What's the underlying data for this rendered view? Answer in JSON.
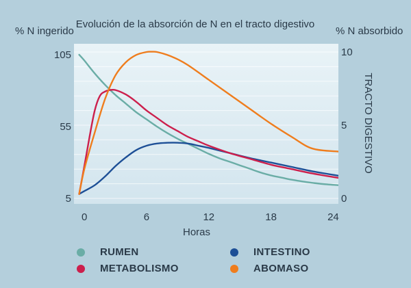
{
  "chart_data": {
    "type": "line",
    "title": "Evolución de la absorción de N en el tracto digestivo",
    "xlabel": "Horas",
    "ylabel_left": "% N ingerido",
    "ylabel_right": "% N absorbido",
    "ylabel_right_secondary": "TRACTO DIGESTIVO",
    "xlim": [
      -1,
      24.5
    ],
    "x_ticks": [
      0,
      6,
      12,
      18,
      24
    ],
    "ylim_left": [
      5,
      105
    ],
    "y_ticks_left": [
      5,
      55,
      105
    ],
    "ylim_right": [
      0,
      10
    ],
    "y_ticks_right": [
      0,
      5,
      10
    ],
    "grid": true,
    "legend_position": "bottom",
    "series": [
      {
        "name": "RUMEN",
        "axis": "left",
        "color": "#6aada6",
        "x": [
          -0.5,
          0,
          1,
          2,
          3,
          4,
          5,
          6,
          7,
          8,
          9,
          10,
          11,
          12,
          13,
          14,
          15,
          16,
          17,
          18,
          19,
          20,
          21,
          22,
          23,
          24.5
        ],
        "y": [
          105,
          101,
          92,
          84,
          77,
          71,
          65,
          60,
          55,
          50.5,
          46.5,
          43,
          39.5,
          36,
          33,
          30.5,
          28,
          25.5,
          23,
          21,
          19.5,
          18,
          16.8,
          15.8,
          15,
          14.2
        ]
      },
      {
        "name": "METABOLISMO",
        "axis": "right",
        "color": "#cc1f4c",
        "x": [
          -0.5,
          0,
          0.5,
          1,
          1.5,
          2,
          2.5,
          3,
          4,
          5,
          6,
          7,
          8,
          9,
          10,
          11,
          12,
          14,
          16,
          18,
          20,
          22,
          24.5
        ],
        "y": [
          0.3,
          2.2,
          4.2,
          6.0,
          7.0,
          7.3,
          7.4,
          7.4,
          7.1,
          6.6,
          6.0,
          5.5,
          5.0,
          4.6,
          4.2,
          3.9,
          3.6,
          3.1,
          2.7,
          2.3,
          2.0,
          1.7,
          1.4
        ]
      },
      {
        "name": "INTESTINO",
        "axis": "right",
        "color": "#1d4f96",
        "x": [
          -0.5,
          0,
          1,
          2,
          3,
          4,
          5,
          6,
          7,
          8,
          9,
          10,
          11,
          12,
          14,
          16,
          18,
          20,
          22,
          24.5
        ],
        "y": [
          0.3,
          0.5,
          0.9,
          1.5,
          2.2,
          2.8,
          3.3,
          3.6,
          3.75,
          3.8,
          3.8,
          3.75,
          3.6,
          3.45,
          3.1,
          2.75,
          2.45,
          2.15,
          1.85,
          1.55
        ]
      },
      {
        "name": "ABOMASO",
        "axis": "right",
        "color": "#ef7d1d",
        "x": [
          -0.5,
          0,
          1,
          2,
          3,
          4,
          5,
          6,
          6.5,
          7,
          8,
          9,
          10,
          12,
          14,
          16,
          18,
          20,
          22,
          24.5
        ],
        "y": [
          0.3,
          2.0,
          4.5,
          6.8,
          8.4,
          9.3,
          9.8,
          10.0,
          10.02,
          10.0,
          9.8,
          9.5,
          9.1,
          8.1,
          7.1,
          6.1,
          5.1,
          4.2,
          3.4,
          3.2
        ]
      }
    ]
  },
  "legend": {
    "rumen": "RUMEN",
    "metabolismo": "METABOLISMO",
    "intestino": "INTESTINO",
    "abomaso": "ABOMASO"
  }
}
